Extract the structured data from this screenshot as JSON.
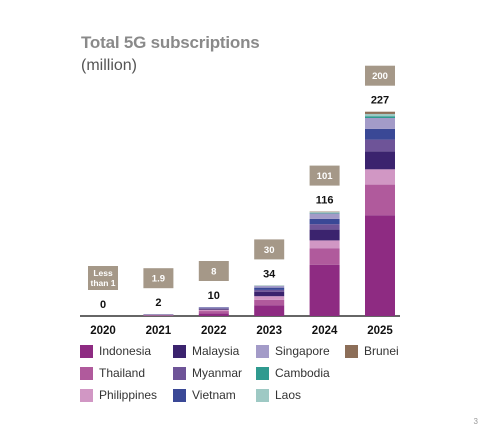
{
  "header": {
    "title": "Total 5G subscriptions",
    "subtitle": "(million)"
  },
  "colors": {
    "Indonesia": "#8e2b82",
    "Thailand": "#b05a9c",
    "Philippines": "#d197c4",
    "Malaysia": "#3b236e",
    "Myanmar": "#6e5498",
    "Vietnam": "#3a4896",
    "Singapore": "#a39bc8",
    "Cambodia": "#2f9a8f",
    "Laos": "#9ec9c4",
    "Brunei": "#8c6e58",
    "badge": "#a59888",
    "axis": "#333333"
  },
  "chart_data": {
    "type": "bar",
    "stacked": true,
    "categories": [
      "2020",
      "2021",
      "2022",
      "2023",
      "2024",
      "2025"
    ],
    "totals": [
      "0",
      "2",
      "10",
      "34",
      "116",
      "227"
    ],
    "badges": [
      "Less than 1",
      "1.9",
      "8",
      "30",
      "101",
      "200"
    ],
    "series": [
      {
        "name": "Indonesia",
        "values": [
          0,
          0.3,
          3,
          12,
          57,
          112
        ]
      },
      {
        "name": "Thailand",
        "values": [
          0,
          0.5,
          2.5,
          6,
          18,
          34
        ]
      },
      {
        "name": "Philippines",
        "values": [
          0,
          0.4,
          1.5,
          4,
          9,
          17
        ]
      },
      {
        "name": "Malaysia",
        "values": [
          0,
          0.3,
          1,
          5,
          12,
          20
        ]
      },
      {
        "name": "Myanmar",
        "values": [
          0,
          0.1,
          0.6,
          2,
          6,
          13
        ]
      },
      {
        "name": "Vietnam",
        "values": [
          0,
          0.2,
          0.7,
          2.5,
          6,
          12
        ]
      },
      {
        "name": "Singapore",
        "values": [
          0,
          0.2,
          0.7,
          2,
          6,
          12
        ]
      },
      {
        "name": "Cambodia",
        "values": [
          0,
          0,
          0,
          0.2,
          0.7,
          2
        ]
      },
      {
        "name": "Laos",
        "values": [
          0,
          0,
          0,
          0.2,
          0.7,
          2.5
        ]
      },
      {
        "name": "Brunei",
        "values": [
          0,
          0,
          0,
          0.1,
          0.6,
          2.5
        ]
      }
    ],
    "ylim": [
      0,
      240
    ],
    "grid": false,
    "legend_placement": "bottom"
  },
  "legend": [
    {
      "label": "Indonesia"
    },
    {
      "label": "Thailand"
    },
    {
      "label": "Philippines"
    },
    {
      "label": "Malaysia"
    },
    {
      "label": "Myanmar"
    },
    {
      "label": "Vietnam"
    },
    {
      "label": "Singapore"
    },
    {
      "label": "Cambodia"
    },
    {
      "label": "Laos"
    },
    {
      "label": "Brunei"
    }
  ],
  "footer": {
    "page_number": "3"
  }
}
